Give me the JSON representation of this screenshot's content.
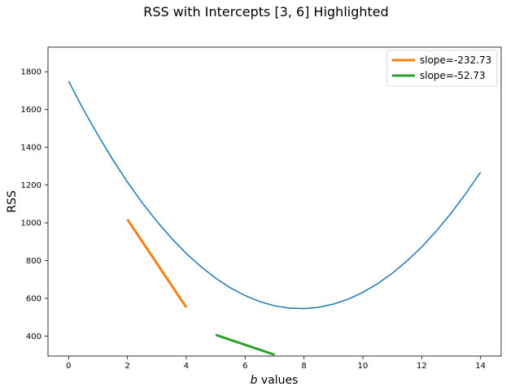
{
  "chart_data": {
    "type": "line",
    "title": "RSS with Intercepts [3, 6] Highlighted",
    "xlabel_var": "b",
    "xlabel_rest": " values",
    "ylabel": "RSS",
    "xlim": [
      -0.7,
      14.7
    ],
    "ylim": [
      295,
      1930
    ],
    "xticks": [
      0,
      2,
      4,
      6,
      8,
      10,
      12,
      14
    ],
    "yticks": [
      400,
      600,
      800,
      1000,
      1200,
      1400,
      1600,
      1800
    ],
    "grid": false,
    "legend_position": "top-right",
    "curve": {
      "color": "#1f77b4",
      "x": [
        0,
        0.5,
        1,
        1.5,
        2,
        2.5,
        3,
        3.5,
        4,
        4.5,
        5,
        5.5,
        6,
        6.5,
        7,
        7.5,
        8,
        8.5,
        9,
        9.5,
        10,
        10.5,
        11,
        11.5,
        12,
        12.5,
        13,
        13.5,
        14
      ],
      "y": [
        1750,
        1601,
        1464,
        1335,
        1216,
        1107,
        1008,
        918,
        838,
        768,
        707,
        656,
        615,
        583,
        561,
        549,
        546,
        553,
        570,
        596,
        632,
        678,
        733,
        798,
        872,
        957,
        1051,
        1155,
        1268
      ]
    },
    "tangents": [
      {
        "name": "slope=-232.73",
        "color": "#ff7f0e",
        "x": [
          2,
          4
        ],
        "y": [
          1018,
          553
        ]
      },
      {
        "name": "slope=-52.73",
        "color": "#2ca02c",
        "x": [
          5,
          7
        ],
        "y": [
          407,
          302
        ]
      }
    ]
  }
}
